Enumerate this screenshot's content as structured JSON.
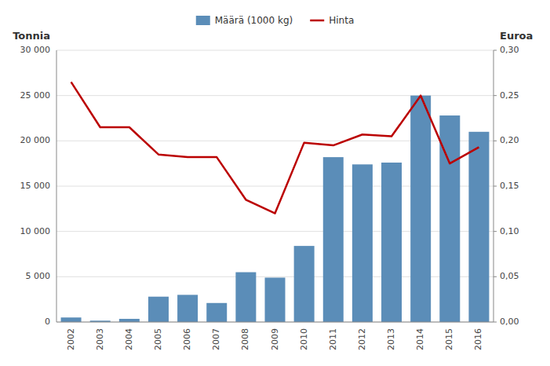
{
  "chart_data": {
    "type": "bar",
    "categories": [
      2002,
      2003,
      2004,
      2005,
      2006,
      2007,
      2008,
      2009,
      2010,
      2011,
      2012,
      2013,
      2014,
      2015,
      2016
    ],
    "series": [
      {
        "name": "Määrä (1000 kg)",
        "type": "bar",
        "color": "#5b8db8",
        "values": [
          500,
          150,
          350,
          2800,
          3000,
          2100,
          5500,
          4900,
          8400,
          18200,
          17400,
          17600,
          25000,
          22800,
          21000
        ]
      },
      {
        "name": "Hinta",
        "type": "line",
        "axis": "y2",
        "color": "#bb0000",
        "values": [
          0.265,
          0.215,
          0.215,
          0.185,
          0.182,
          0.182,
          0.135,
          0.12,
          0.198,
          0.195,
          0.207,
          0.205,
          0.25,
          0.175,
          0.193
        ]
      }
    ],
    "y_label": "Tonnia",
    "y2_label": "Euroa",
    "ylim": [
      0,
      30000
    ],
    "yticks": [
      0,
      {
        "value": 5000,
        "label": "5 000"
      },
      {
        "value": 10000,
        "label": "10 000"
      },
      {
        "value": 15000,
        "label": "15 000"
      },
      {
        "value": 20000,
        "label": "20 000"
      },
      {
        "value": 25000,
        "label": "25 000"
      },
      {
        "value": 30000,
        "label": "30 000"
      }
    ],
    "y2lim": [
      0.0,
      0.3
    ],
    "y2ticks": [
      {
        "value": 0.0,
        "label": "0,00"
      },
      {
        "value": 0.05,
        "label": "0,05"
      },
      {
        "value": 0.1,
        "label": "0,10"
      },
      {
        "value": 0.15,
        "label": "0,15"
      },
      {
        "value": 0.2,
        "label": "0,20"
      },
      {
        "value": 0.25,
        "label": "0,25"
      },
      {
        "value": 0.3,
        "label": "0,30"
      }
    ],
    "grid": true,
    "legend": "top"
  }
}
